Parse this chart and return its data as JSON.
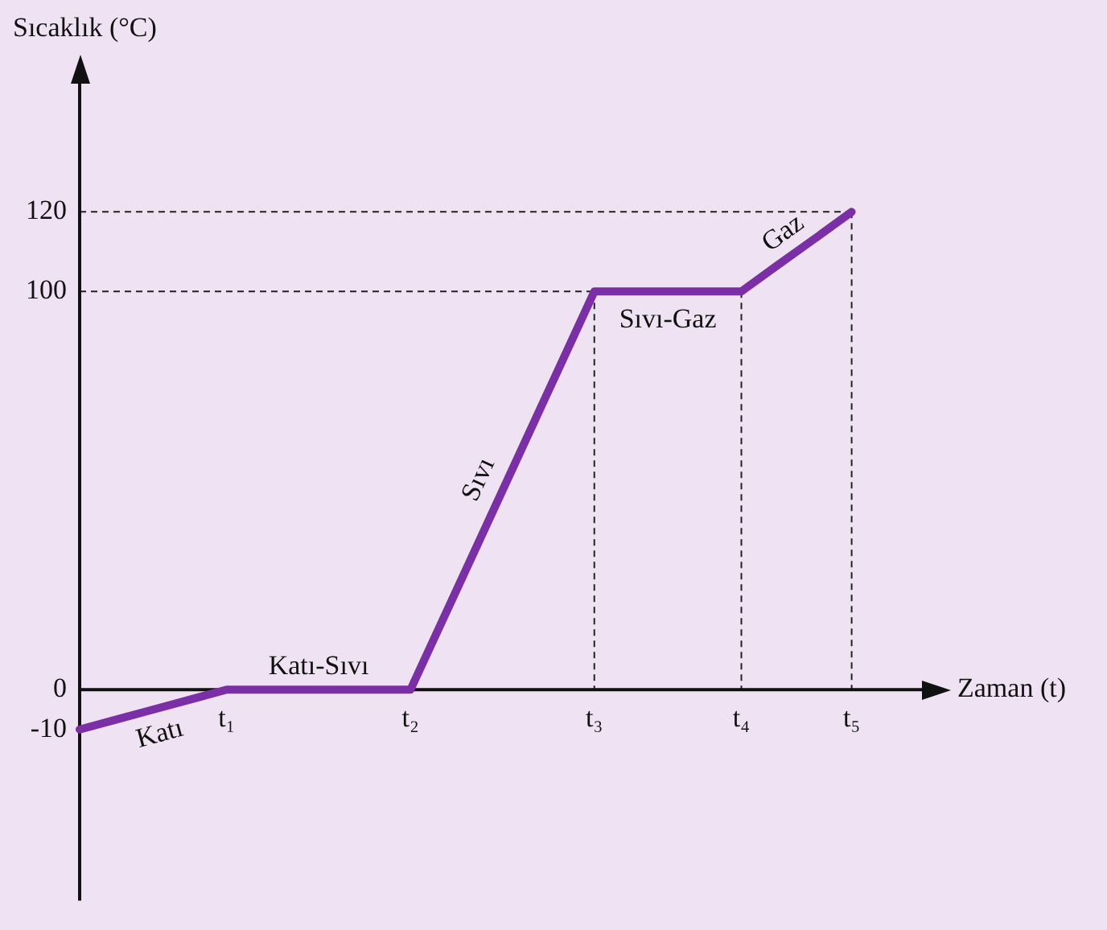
{
  "chart_data": {
    "type": "line",
    "ylabel": "Sıcaklık (°C)",
    "xlabel": "Zaman (t)",
    "categories": [
      null,
      null,
      null,
      null,
      "t₁",
      null,
      null,
      null,
      null,
      "t₂",
      null,
      null,
      null,
      null,
      "t₃",
      null,
      null,
      null,
      "t₄",
      null,
      null,
      "t₅",
      null,
      null
    ],
    "series": [
      {
        "color": "#7b2fa6",
        "values": [
          -10,
          -7.5,
          -5,
          -2.5,
          0,
          0,
          0,
          0,
          0,
          0,
          20,
          40,
          60,
          80,
          100,
          100,
          100,
          100,
          100,
          106.7,
          113.3,
          120,
          null,
          null
        ]
      }
    ],
    "ylim": [
      -53,
      153
    ],
    "yticks": [
      -10,
      0,
      100,
      120
    ],
    "annotations": [
      "Katı",
      "Katı-Sıvı",
      "Sıvı",
      "Sıvı-Gaz",
      "Gaz"
    ],
    "grid": "y",
    "legend": false,
    "marker": "none",
    "line_style": "solid"
  }
}
